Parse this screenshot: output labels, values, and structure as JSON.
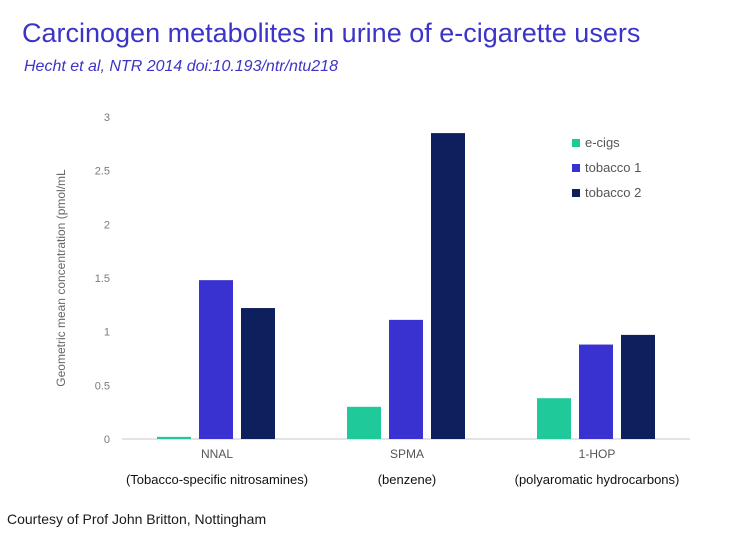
{
  "slide": {
    "title": "Carcinogen metabolites in urine of e-cigarette users",
    "subtitle": "Hecht et al, NTR 2014 doi:10.193/ntr/ntu218",
    "credit": "Courtesy of Prof John Britton, Nottingham"
  },
  "chart_data": {
    "type": "bar",
    "title": "",
    "xlabel": "",
    "ylabel": "Geometric mean concentration (pmol/mL",
    "ylim": [
      0,
      3
    ],
    "yticks": [
      "0",
      "0.5",
      "1",
      "1.5",
      "2",
      "2.5",
      "3"
    ],
    "grid": false,
    "legend_position": "top-right",
    "categories": [
      "NNAL",
      "SPMA",
      "1-HOP"
    ],
    "category_notes": [
      "(Tobacco-specific nitrosamines)",
      "(benzene)",
      "(polyaromatic hydrocarbons)"
    ],
    "series": [
      {
        "name": "e-cigs",
        "color": "#1fc99a",
        "values": [
          0.02,
          0.3,
          0.38
        ]
      },
      {
        "name": "tobacco 1",
        "color": "#3a32d0",
        "values": [
          1.48,
          1.11,
          0.88
        ]
      },
      {
        "name": "tobacco 2",
        "color": "#0d1f5c",
        "values": [
          1.22,
          2.85,
          0.97
        ]
      }
    ]
  }
}
